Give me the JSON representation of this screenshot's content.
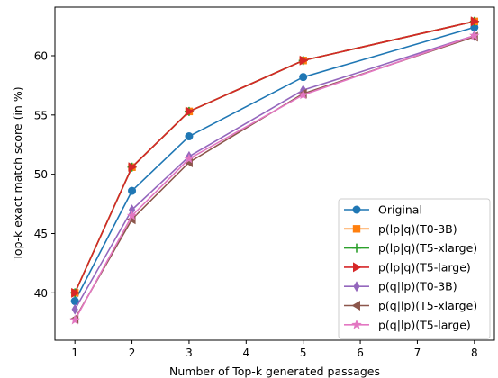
{
  "chart_data": {
    "type": "line",
    "title": "",
    "xlabel": "Number of Top-k generated passages",
    "ylabel": "Top-k exact match score (in %)",
    "x": [
      1,
      2,
      3,
      5,
      8
    ],
    "xlim": [
      0.65,
      8.35
    ],
    "ylim": [
      36.0,
      64.1
    ],
    "xticks": [
      1,
      2,
      3,
      4,
      5,
      6,
      7,
      8
    ],
    "yticks": [
      40,
      45,
      50,
      55,
      60
    ],
    "grid": false,
    "legend_position": "lower-right",
    "series": [
      {
        "name": "Original",
        "color": "#1f77b4",
        "marker": "circle",
        "values": [
          39.3,
          48.6,
          53.2,
          58.2,
          62.4
        ]
      },
      {
        "name": "p(lp|q)(T0-3B)",
        "color": "#ff7f0e",
        "marker": "square",
        "values": [
          40.0,
          50.6,
          55.3,
          59.6,
          62.9
        ]
      },
      {
        "name": "p(lp|q)(T5-xlarge)",
        "color": "#2ca02c",
        "marker": "plus",
        "values": [
          40.0,
          50.6,
          55.3,
          59.6,
          62.9
        ]
      },
      {
        "name": "p(lp|q)(T5-large)",
        "color": "#d62728",
        "marker": "triangle-right",
        "values": [
          40.0,
          50.6,
          55.3,
          59.6,
          62.9
        ]
      },
      {
        "name": "p(q|lp)(T0-3B)",
        "color": "#9467bd",
        "marker": "diamond",
        "values": [
          38.6,
          47.0,
          51.5,
          57.1,
          61.7
        ]
      },
      {
        "name": "p(q|lp)(T5-xlarge)",
        "color": "#8c564b",
        "marker": "triangle-left",
        "values": [
          37.8,
          46.2,
          51.0,
          56.8,
          61.6
        ]
      },
      {
        "name": "p(q|lp)(T5-large)",
        "color": "#e377c2",
        "marker": "star",
        "values": [
          37.7,
          46.5,
          51.3,
          56.7,
          61.7
        ]
      }
    ]
  }
}
